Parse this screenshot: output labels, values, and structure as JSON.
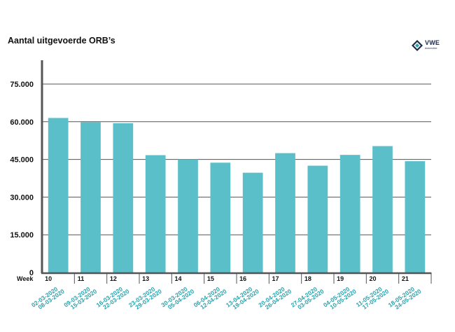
{
  "chart_data": {
    "type": "bar",
    "title": "Aantal uitgevoerde ORB’s",
    "xlabel": "Week",
    "ylabel": "",
    "ylim": [
      0,
      75000
    ],
    "y_ticks": [
      0,
      15000,
      30000,
      45000,
      60000,
      75000
    ],
    "y_tick_labels": [
      "0",
      "15.000",
      "30.000",
      "45.000",
      "60.000",
      "75.000"
    ],
    "grid": true,
    "categories": [
      "10",
      "11",
      "12",
      "13",
      "14",
      "15",
      "16",
      "17",
      "18",
      "19",
      "20",
      "21"
    ],
    "date_ranges": [
      [
        "02-03-2020",
        "08-03-2020"
      ],
      [
        "09-03-2020",
        "15-03-2020"
      ],
      [
        "16-03-2020",
        "22-03-2020"
      ],
      [
        "23-03-2020",
        "29-03-2020"
      ],
      [
        "30-03-2020",
        "05-04-2020"
      ],
      [
        "06-04-2020",
        "12-04-2020"
      ],
      [
        "13-04-2020",
        "19-04-2020"
      ],
      [
        "20-04-2020",
        "26-04-2020"
      ],
      [
        "27-04-2020",
        "03-05-2020"
      ],
      [
        "04-05-2020",
        "10-05-2020"
      ],
      [
        "11-05-2020",
        "17-05-2020"
      ],
      [
        "18-05-2020",
        "24-05-2020"
      ]
    ],
    "values": [
      61500,
      59800,
      59400,
      46700,
      45000,
      43700,
      39700,
      47500,
      42500,
      46800,
      50300,
      44300
    ],
    "bar_color": "#5bbfc9",
    "date_label_color": "#2aa3ad",
    "gridline_color": "#555555"
  },
  "logo": {
    "brand": "VWE",
    "tagline": "Automotive",
    "color": "#1c2b4a",
    "accent": "#2aa3ad"
  }
}
